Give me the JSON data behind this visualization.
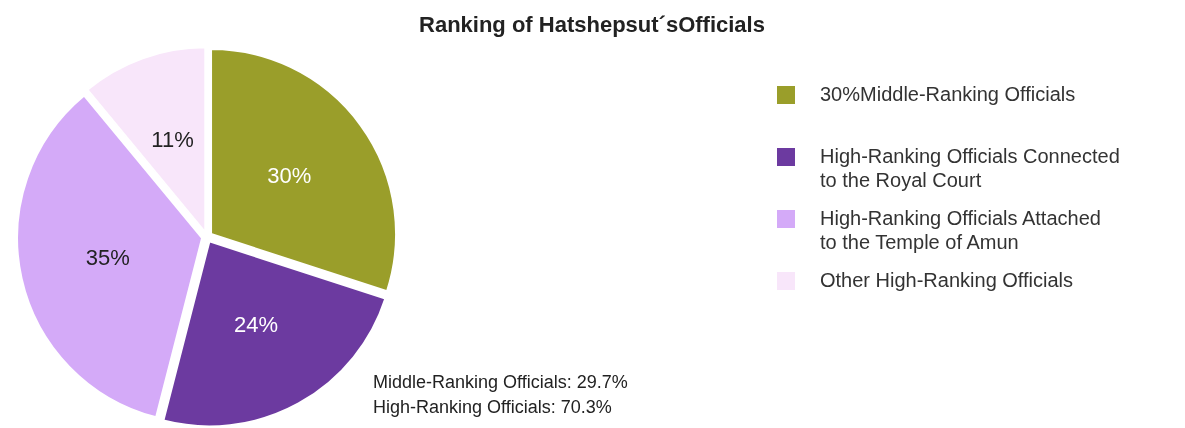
{
  "chart_data": {
    "type": "pie",
    "title": "Ranking of Hatshepsut´sOfficials",
    "categories": [
      "30%Middle-Ranking Officials",
      "High-Ranking Officials Connected to the Royal Court",
      "High-Ranking Officials Attached to the Temple of Amun",
      "Other High-Ranking Officials"
    ],
    "values": [
      30,
      24,
      35,
      11
    ],
    "colors": [
      "#9a9e2a",
      "#6c3aa0",
      "#d4aaf8",
      "#f8e6fa"
    ],
    "value_labels": [
      "30%",
      "24%",
      "35%",
      "11%"
    ],
    "legend": "right",
    "annotations": [
      "Middle-Ranking Officials: 29.7%",
      "High-Ranking Officials: 70.3%"
    ]
  }
}
